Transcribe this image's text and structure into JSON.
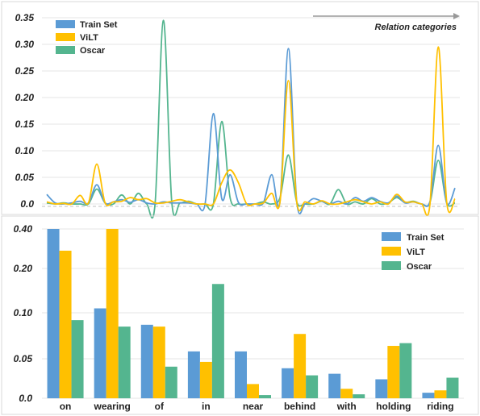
{
  "colors": {
    "train": "#5B9BD5",
    "vilt": "#FFC000",
    "oscar": "#54B58F"
  },
  "chart_data": [
    {
      "type": "line",
      "annotation": "Relation categories",
      "x": [
        0,
        1,
        2,
        3,
        4,
        5,
        6,
        7,
        8,
        9,
        10,
        11,
        12,
        13,
        14,
        15,
        16,
        17,
        18,
        19,
        20,
        21,
        22,
        23,
        24,
        25,
        26,
        27,
        28,
        29,
        30,
        31,
        32,
        33,
        34,
        35,
        36,
        37,
        38,
        39,
        40,
        41,
        42,
        43,
        44,
        45,
        46,
        47,
        48,
        49
      ],
      "ylim": [
        0,
        0.35
      ],
      "yticks": [
        "0.0",
        "0.05",
        "0.10",
        "0.15",
        "0.20",
        "0.25",
        "0.30",
        "0.35"
      ],
      "grid": true,
      "legend_position": "top-left",
      "series": [
        {
          "name": "Train Set",
          "values": [
            0.018,
            0.002,
            0.0,
            0.002,
            0.005,
            0.002,
            0.036,
            0.002,
            0.004,
            0.008,
            0.003,
            0.008,
            0.002,
            0.0,
            0.004,
            0.002,
            0.002,
            0.002,
            0.0,
            0.0,
            0.17,
            0.01,
            0.055,
            0.003,
            0.0,
            0.0,
            0.002,
            0.055,
            0.005,
            0.292,
            0.005,
            0.0,
            0.01,
            0.005,
            0.0,
            0.005,
            0.0,
            0.012,
            0.005,
            0.012,
            0.005,
            0.002,
            0.015,
            0.002,
            0.004,
            0.0,
            0.005,
            0.11,
            0.002,
            0.03
          ]
        },
        {
          "name": "ViLT",
          "values": [
            0.004,
            0.0,
            0.001,
            0.0,
            0.016,
            0.002,
            0.075,
            0.002,
            0.004,
            0.005,
            0.012,
            0.008,
            0.01,
            0.002,
            0.002,
            0.005,
            0.008,
            0.004,
            0.0,
            0.0,
            0.0,
            0.04,
            0.064,
            0.04,
            0.0,
            0.0,
            0.002,
            0.02,
            0.004,
            0.232,
            0.004,
            0.004,
            0.0,
            0.006,
            0.0,
            0.0,
            0.004,
            0.008,
            0.004,
            0.0,
            0.004,
            0.0,
            0.018,
            0.004,
            0.004,
            0.0,
            0.0,
            0.295,
            0.004,
            0.01
          ]
        },
        {
          "name": "Oscar",
          "values": [
            0.002,
            0.0,
            0.002,
            0.0,
            0.0,
            0.0,
            0.028,
            0.002,
            0.0,
            0.017,
            0.0,
            0.02,
            0.0,
            0.0,
            0.345,
            0.004,
            0.002,
            0.005,
            0.0,
            0.0,
            0.0,
            0.155,
            0.012,
            0.0,
            0.0,
            0.0,
            0.004,
            0.0,
            0.012,
            0.092,
            0.004,
            0.0,
            0.0,
            0.005,
            0.0,
            0.027,
            0.0,
            0.004,
            0.0,
            0.01,
            0.0,
            0.002,
            0.012,
            0.003,
            0.005,
            0.0,
            0.003,
            0.082,
            0.002,
            0.002
          ]
        }
      ]
    },
    {
      "type": "bar",
      "categories": [
        "on",
        "wearing",
        "of",
        "in",
        "near",
        "behind",
        "with",
        "holding",
        "riding"
      ],
      "ylim": [
        0,
        0.4
      ],
      "yticks": [
        "0.0",
        "0.05",
        "0.10",
        "0.20",
        "0.40"
      ],
      "grid": true,
      "legend_position": "top-right",
      "series": [
        {
          "name": "Train Set",
          "values": [
            0.405,
            0.11,
            0.087,
            0.058,
            0.058,
            0.038,
            0.031,
            0.024,
            0.007
          ]
        },
        {
          "name": "ViLT",
          "values": [
            0.29,
            0.408,
            0.085,
            0.046,
            0.018,
            0.077,
            0.012,
            0.064,
            0.01
          ]
        },
        {
          "name": "Oscar",
          "values": [
            0.092,
            0.085,
            0.04,
            0.165,
            0.004,
            0.029,
            0.005,
            0.067,
            0.026
          ]
        }
      ]
    }
  ]
}
